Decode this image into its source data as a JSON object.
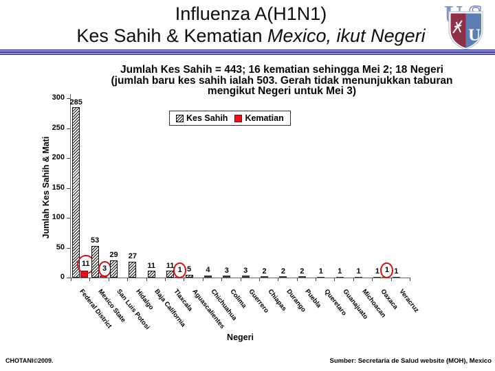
{
  "slide": {
    "title_line1": "Influenza A(H1N1)",
    "title_line2_normal": "Kes Sahih & Kematian ",
    "title_line2_italic": "Mexico, ikut Negeri",
    "footer_left": "CHOTANI©2009.",
    "footer_right": "Sumber: Secretaria de Salud website (MOH), Mexico"
  },
  "subtitle": {
    "line1": "Jumlah Kes Sahih = 443; 16 kematian sehingga Mei 2; 18 Negeri",
    "line2": "(jumlah baru kes sahih ialah 503. Gerah tidak menunjukkan taburan",
    "line3": "mengikut Negeri untuk Mei 3)"
  },
  "logo": {
    "letter_top_left": "U",
    "letter_top_right": "S",
    "letter_shield": "U"
  },
  "chart_data": {
    "type": "bar",
    "title": "",
    "xlabel": "Negeri",
    "ylabel": "Jumlah Kes Sahih & Mati",
    "ylim": [
      0,
      300
    ],
    "yticks": [
      0,
      50,
      100,
      150,
      200,
      250,
      300
    ],
    "grid": false,
    "legend_position": "top-center",
    "categories": [
      "Federal District",
      "Mexico State",
      "San Luis Potosi",
      "Hidalgo",
      "Baja California",
      "Tlaxcala",
      "Aguascalientes",
      "Chichuahua",
      "Colima",
      "Guerrero",
      "Chiapas",
      "Durango",
      "Puebla",
      "Queretaro",
      "Guanajuato",
      "Michoacan",
      "Oaxaca",
      "Veracruz"
    ],
    "series": [
      {
        "name": "Kes Sahih",
        "style": "black-diagonal-hatch",
        "values": [
          285,
          53,
          29,
          27,
          11,
          11,
          5,
          4,
          3,
          3,
          2,
          2,
          2,
          1,
          1,
          1,
          1,
          1
        ]
      },
      {
        "name": "Kematian",
        "style": "solid-red",
        "values": [
          11,
          3,
          0,
          0,
          0,
          1,
          0,
          0,
          0,
          0,
          0,
          0,
          0,
          0,
          0,
          0,
          1,
          0
        ]
      }
    ],
    "annotations": {
      "circled_death_labels": [
        {
          "category": "Federal District",
          "value": 11
        },
        {
          "category": "Mexico State",
          "value": 3
        },
        {
          "category": "Tlaxcala",
          "value": 1
        },
        {
          "category": "Oaxaca",
          "value": 1
        }
      ]
    },
    "colors": {
      "kematian_red": "#e8141e",
      "circle_annotation": "#e00a12",
      "axis": "#666666",
      "hatch_line": "#101010"
    }
  }
}
